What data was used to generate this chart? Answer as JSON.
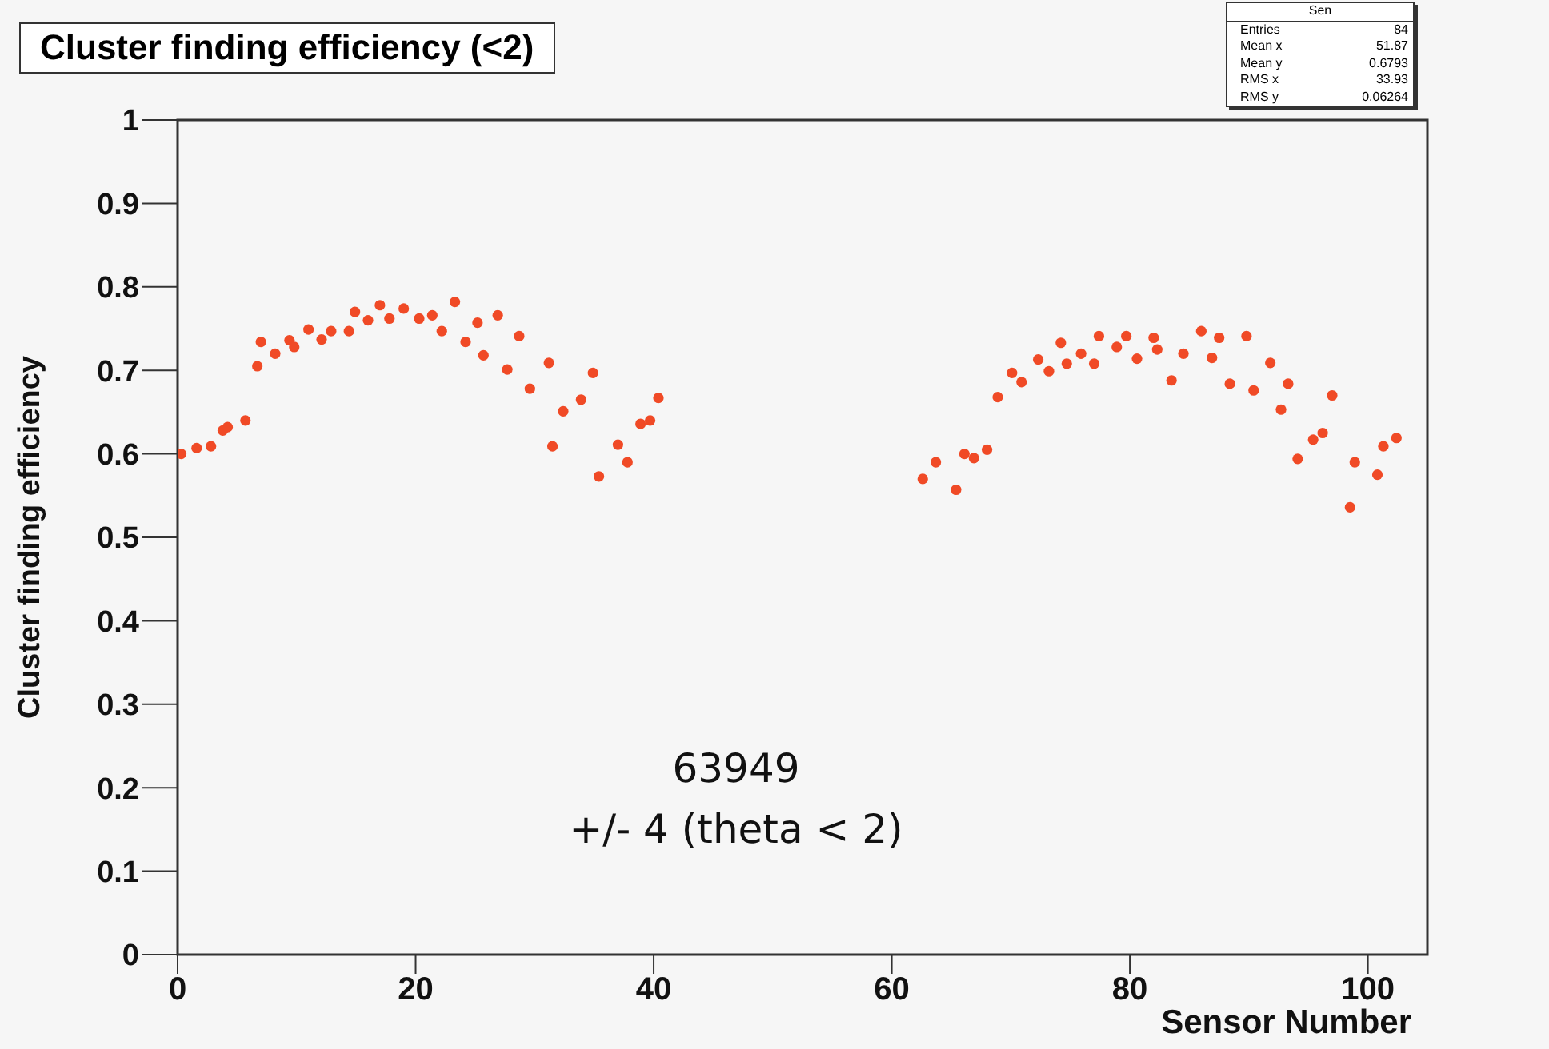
{
  "chart_data": {
    "type": "scatter",
    "title": "Cluster finding efficiency (<2)",
    "xlabel": "Sensor Number",
    "ylabel": "Cluster finding efficiency",
    "x": [
      0.3,
      1.6,
      2.8,
      3.8,
      4.2,
      5.7,
      6.7,
      7,
      8.2,
      9.4,
      9.8,
      11,
      12.1,
      12.9,
      14.4,
      14.9,
      16,
      17,
      17.8,
      19,
      20.3,
      21.4,
      22.2,
      23.3,
      24.2,
      25.2,
      25.7,
      26.9,
      27.7,
      28.7,
      29.6,
      31.2,
      31.5,
      32.4,
      33.9,
      34.9,
      35.4,
      37,
      37.8,
      38.9,
      39.7,
      40.4,
      62.6,
      63.7,
      65.4,
      66.1,
      66.9,
      68,
      68.9,
      70.1,
      70.9,
      72.3,
      73.2,
      74.2,
      74.7,
      75.9,
      77,
      77.4,
      78.9,
      79.7,
      80.6,
      82,
      82.3,
      83.5,
      84.5,
      86,
      86.9,
      87.5,
      88.4,
      89.8,
      90.4,
      91.8,
      92.7,
      93.3,
      94.1,
      95.4,
      96.2,
      97,
      98.5,
      98.9,
      100.8,
      101.3,
      102.4
    ],
    "values": [
      0.6,
      0.607,
      0.609,
      0.628,
      0.632,
      0.64,
      0.705,
      0.734,
      0.72,
      0.736,
      0.728,
      0.749,
      0.737,
      0.747,
      0.747,
      0.77,
      0.76,
      0.778,
      0.762,
      0.774,
      0.762,
      0.766,
      0.747,
      0.782,
      0.734,
      0.757,
      0.718,
      0.766,
      0.701,
      0.741,
      0.678,
      0.709,
      0.609,
      0.651,
      0.665,
      0.697,
      0.573,
      0.611,
      0.59,
      0.636,
      0.64,
      0.667,
      0.57,
      0.59,
      0.557,
      0.6,
      0.595,
      0.605,
      0.668,
      0.697,
      0.686,
      0.713,
      0.699,
      0.733,
      0.708,
      0.72,
      0.708,
      0.741,
      0.728,
      0.741,
      0.714,
      0.739,
      0.725,
      0.688,
      0.72,
      0.747,
      0.715,
      0.739,
      0.684,
      0.741,
      0.676,
      0.709,
      0.653,
      0.684,
      0.594,
      0.617,
      0.625,
      0.67,
      0.536,
      0.59,
      0.575,
      0.609,
      0.619
    ],
    "color": "#f04a26",
    "marker": "circle",
    "grid": false,
    "xlim": [
      0,
      105
    ],
    "xticks": [
      0,
      20,
      40,
      60,
      80,
      100
    ],
    "ylim": [
      0,
      1
    ],
    "yticks": [
      0,
      0.1,
      0.2,
      0.3,
      0.4,
      0.5,
      0.6,
      0.7,
      0.8,
      0.9,
      1
    ],
    "annotations": [
      "63949",
      "+/- 4 (theta < 2)",
      "Sen",
      "Entries 84",
      "Mean x 51.87",
      "Mean y 0.6793",
      "RMS x 33.93",
      "RMS y 0.06264"
    ]
  }
}
